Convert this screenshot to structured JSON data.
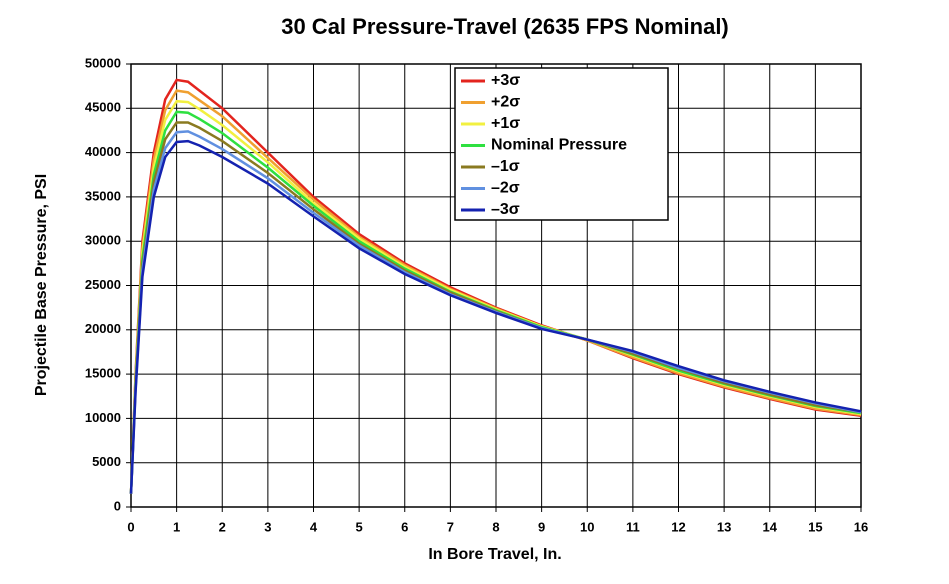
{
  "chart_data": {
    "type": "line",
    "title": "30 Cal Pressure-Travel (2635 FPS Nominal)",
    "x_label": "In Bore Travel, In.",
    "y_label": "Projectile Base Pressure,  PSI",
    "x": [
      0,
      0.1,
      0.25,
      0.5,
      0.75,
      1,
      1.25,
      1.5,
      2,
      3,
      4,
      5,
      6,
      7,
      8,
      9,
      10,
      11,
      12,
      13,
      14,
      15,
      16
    ],
    "series": [
      {
        "name": "+3σ",
        "color": "#e3241e",
        "values": [
          1500,
          15000,
          30000,
          40000,
          46000,
          48200,
          48000,
          47000,
          45000,
          40000,
          35000,
          30800,
          27500,
          24800,
          22500,
          20500,
          18800,
          16800,
          15000,
          13500,
          12200,
          11000,
          10300
        ]
      },
      {
        "name": "+2σ",
        "color": "#f0a030",
        "values": [
          1500,
          14700,
          29300,
          39200,
          44800,
          47000,
          46800,
          45900,
          44100,
          39400,
          34700,
          30500,
          27300,
          24600,
          22400,
          20400,
          18800,
          16900,
          15100,
          13600,
          12300,
          11100,
          10400
        ]
      },
      {
        "name": "+1σ",
        "color": "#f2f040",
        "values": [
          1500,
          14300,
          28700,
          38300,
          43700,
          45800,
          45700,
          44900,
          43100,
          38900,
          34300,
          30300,
          27100,
          24500,
          22300,
          20400,
          18900,
          17100,
          15300,
          13800,
          12500,
          11300,
          10500
        ]
      },
      {
        "name": "Nominal Pressure",
        "color": "#2ee040",
        "values": [
          1500,
          14000,
          28000,
          37500,
          42500,
          44600,
          44500,
          43800,
          42200,
          38300,
          34000,
          30000,
          26900,
          24300,
          22200,
          20300,
          18900,
          17200,
          15400,
          13900,
          12600,
          11400,
          10600
        ]
      },
      {
        "name": "–1σ",
        "color": "#8a7a20",
        "values": [
          1500,
          13700,
          27300,
          36700,
          41500,
          43400,
          43400,
          42800,
          41300,
          37700,
          33600,
          29700,
          26700,
          24200,
          22100,
          20200,
          18900,
          17300,
          15600,
          14000,
          12700,
          11500,
          10700
        ]
      },
      {
        "name": "–2σ",
        "color": "#6090e0",
        "values": [
          1500,
          13300,
          26700,
          35800,
          40500,
          42300,
          42400,
          41800,
          40400,
          37100,
          33200,
          29500,
          26500,
          24000,
          22000,
          20200,
          18900,
          17500,
          15700,
          14200,
          12900,
          11700,
          10700
        ]
      },
      {
        "name": "–3σ",
        "color": "#1422b0",
        "values": [
          1500,
          13000,
          26000,
          35000,
          39500,
          41200,
          41300,
          40800,
          39500,
          36500,
          32800,
          29200,
          26300,
          23900,
          21900,
          20100,
          18900,
          17600,
          15900,
          14300,
          13000,
          11800,
          10800
        ]
      }
    ],
    "xlim": [
      0,
      16
    ],
    "xticks": [
      0,
      1,
      2,
      3,
      4,
      5,
      6,
      7,
      8,
      9,
      10,
      11,
      12,
      13,
      14,
      15,
      16
    ],
    "ylim": [
      0,
      50000
    ],
    "yticks": [
      0,
      5000,
      10000,
      15000,
      20000,
      25000,
      30000,
      35000,
      40000,
      45000,
      50000
    ],
    "grid": true,
    "legend": "top"
  }
}
